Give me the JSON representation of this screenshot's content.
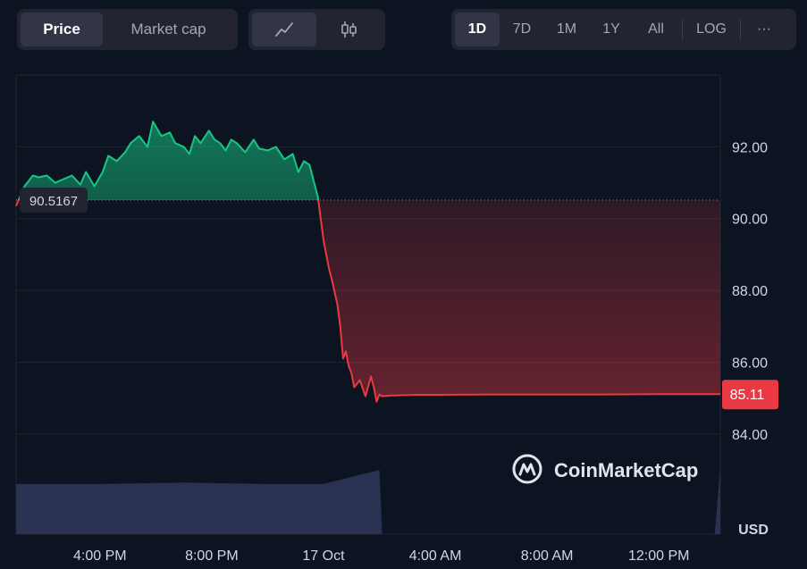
{
  "toolbar": {
    "metric_tabs": [
      {
        "label": "Price",
        "active": true
      },
      {
        "label": "Market cap",
        "active": false
      }
    ],
    "chart_type_tabs": [
      {
        "icon": "line-chart-icon",
        "active": true
      },
      {
        "icon": "candlestick-icon",
        "active": false
      }
    ],
    "range_tabs": [
      {
        "label": "1D",
        "active": true
      },
      {
        "label": "7D",
        "active": false
      },
      {
        "label": "1M",
        "active": false
      },
      {
        "label": "1Y",
        "active": false
      },
      {
        "label": "All",
        "active": false
      }
    ],
    "log_label": "LOG",
    "more_label": "···"
  },
  "watermark": "CoinMarketCap",
  "currency_label": "USD",
  "colors": {
    "up": "#16c784",
    "down": "#ea3943",
    "background": "#0d1421",
    "volume": "#2b3454"
  },
  "chart_data": {
    "type": "area",
    "baseline": {
      "value": 90.5167,
      "label": "90.5167"
    },
    "last_price": {
      "value": 85.11,
      "label": "85.11"
    },
    "y_ticks": [
      "92.00",
      "90.00",
      "88.00",
      "86.00",
      "84.00"
    ],
    "y_tick_values": [
      92,
      90,
      88,
      86,
      84
    ],
    "ylim": [
      83.1,
      94.0
    ],
    "x_ticks": [
      "4:00 PM",
      "8:00 PM",
      "17 Oct",
      "4:00 AM",
      "8:00 AM",
      "12:00 PM"
    ],
    "x_tick_hours": [
      16,
      20,
      24,
      28,
      32,
      36
    ],
    "xlim_hours": [
      13.0,
      38.2
    ],
    "series": [
      {
        "x_hours": [
          13.0,
          13.3,
          13.6,
          13.8,
          14.1,
          14.4,
          14.7,
          15.0,
          15.3,
          15.5,
          15.8,
          16.1,
          16.3,
          16.6,
          16.9,
          17.1,
          17.4,
          17.7,
          17.9,
          18.2,
          18.5,
          18.7,
          19.0,
          19.2,
          19.4,
          19.6,
          19.9,
          20.1,
          20.3,
          20.5,
          20.7,
          20.9,
          21.2,
          21.5,
          21.7,
          22.0,
          22.3,
          22.6,
          22.9,
          23.1,
          23.3,
          23.5,
          23.8,
          24.0,
          24.2,
          24.3,
          24.5,
          24.6,
          24.7,
          24.8,
          24.9,
          25.0,
          25.1,
          25.3,
          25.5,
          25.7,
          25.8,
          25.9,
          26.0,
          26.1,
          26.2,
          26.3,
          26.4,
          26.6,
          26.8,
          27.0,
          27.3,
          28.0,
          30.0,
          32.0,
          34.0,
          36.0,
          37.0,
          38.2
        ],
        "values": [
          90.35,
          90.9,
          91.2,
          91.15,
          91.2,
          91.0,
          91.1,
          91.2,
          90.95,
          91.3,
          90.9,
          91.3,
          91.75,
          91.6,
          91.85,
          92.1,
          92.3,
          92.0,
          92.7,
          92.3,
          92.4,
          92.1,
          92.0,
          91.8,
          92.3,
          92.1,
          92.45,
          92.2,
          92.1,
          91.9,
          92.2,
          92.1,
          91.85,
          92.2,
          91.95,
          91.9,
          92.0,
          91.65,
          91.8,
          91.3,
          91.6,
          91.5,
          90.6,
          89.4,
          88.6,
          88.3,
          87.6,
          87.0,
          86.1,
          86.3,
          85.9,
          85.7,
          85.3,
          85.5,
          85.05,
          85.6,
          85.3,
          84.9,
          85.1,
          85.05,
          85.06,
          85.06,
          85.07,
          85.07,
          85.08,
          85.08,
          85.09,
          85.09,
          85.1,
          85.1,
          85.1,
          85.11,
          85.11,
          85.11
        ]
      }
    ],
    "volume": {
      "x_hours": [
        13.0,
        16.0,
        19.0,
        22.0,
        24.0,
        25.0,
        25.8,
        26.0,
        26.1,
        38.0,
        38.2
      ],
      "values": [
        0.72,
        0.72,
        0.74,
        0.72,
        0.72,
        0.82,
        0.9,
        0.92,
        0.0,
        0.0,
        0.96
      ]
    }
  }
}
